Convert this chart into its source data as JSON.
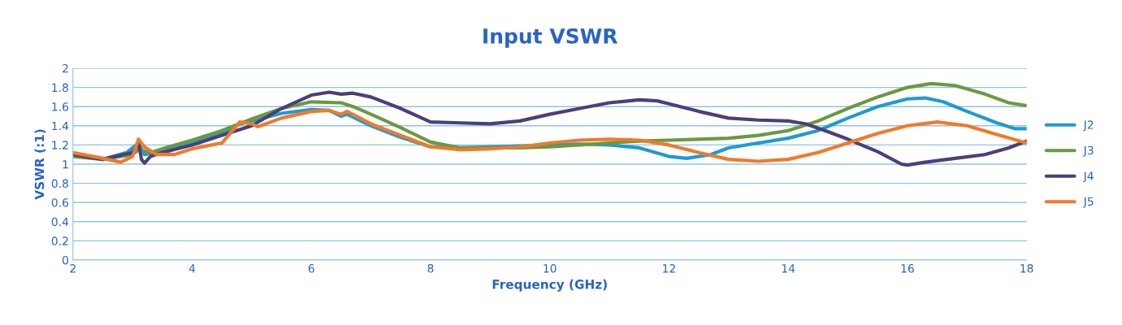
{
  "chart_data": {
    "type": "line",
    "title": "Input VSWR",
    "xlabel": "Frequency (GHz)",
    "ylabel": "VSWR (:1)",
    "xlim": [
      2,
      18
    ],
    "xticks": [
      2,
      4,
      6,
      8,
      10,
      12,
      14,
      16,
      18
    ],
    "ylim": [
      0,
      2
    ],
    "yticks": [
      0,
      0.2,
      0.4,
      0.6,
      0.8,
      1,
      1.2,
      1.4,
      1.6,
      1.8,
      2
    ],
    "grid": "y",
    "legend": "right",
    "line_style": "solid",
    "marker": "none",
    "series": [
      {
        "name": "J2",
        "color": "#1f9ad6",
        "x": [
          2,
          2.5,
          2.9,
          3.1,
          3.2,
          3.5,
          4,
          4.5,
          4.8,
          5,
          5.5,
          6,
          6.3,
          6.5,
          6.6,
          7,
          7.5,
          8,
          8.5,
          9,
          9.5,
          10,
          10.5,
          11,
          11.5,
          12,
          12.3,
          12.7,
          13,
          13.5,
          14,
          14.5,
          15,
          15.5,
          16,
          16.3,
          16.6,
          17,
          17.5,
          17.8,
          18
        ],
        "values": [
          1.1,
          1.05,
          1.12,
          1.22,
          1.1,
          1.13,
          1.22,
          1.32,
          1.42,
          1.45,
          1.53,
          1.57,
          1.56,
          1.5,
          1.52,
          1.4,
          1.28,
          1.18,
          1.17,
          1.18,
          1.19,
          1.2,
          1.21,
          1.2,
          1.17,
          1.08,
          1.06,
          1.1,
          1.17,
          1.22,
          1.27,
          1.35,
          1.48,
          1.6,
          1.68,
          1.69,
          1.65,
          1.55,
          1.43,
          1.37,
          1.37
        ]
      },
      {
        "name": "J3",
        "color": "#6a9a3e",
        "x": [
          2,
          2.5,
          3,
          3.1,
          3.3,
          3.5,
          4,
          4.5,
          5,
          5.5,
          6,
          6.5,
          6.7,
          7,
          7.5,
          8,
          8.5,
          9,
          9.5,
          10,
          10.5,
          11,
          11.5,
          12,
          12.5,
          13,
          13.5,
          14,
          14.5,
          15,
          15.5,
          16,
          16.4,
          16.8,
          17.3,
          17.7,
          18
        ],
        "values": [
          1.08,
          1.05,
          1.1,
          1.15,
          1.12,
          1.16,
          1.25,
          1.35,
          1.47,
          1.58,
          1.65,
          1.64,
          1.6,
          1.52,
          1.38,
          1.23,
          1.17,
          1.17,
          1.17,
          1.18,
          1.2,
          1.22,
          1.24,
          1.25,
          1.26,
          1.27,
          1.3,
          1.35,
          1.45,
          1.58,
          1.7,
          1.8,
          1.84,
          1.82,
          1.73,
          1.64,
          1.61
        ]
      },
      {
        "name": "J4",
        "color": "#4b3f7a",
        "x": [
          2,
          2.5,
          3,
          3.1,
          3.15,
          3.2,
          3.3,
          3.5,
          4,
          4.5,
          5,
          5.5,
          6,
          6.3,
          6.5,
          6.7,
          7,
          7.5,
          8,
          8.5,
          9,
          9.5,
          10,
          10.5,
          11,
          11.5,
          11.8,
          12,
          12.5,
          13,
          13.5,
          14,
          14.3,
          14.7,
          15,
          15.5,
          15.9,
          16,
          16.3,
          16.8,
          17.3,
          17.7,
          18
        ],
        "values": [
          1.1,
          1.05,
          1.12,
          1.22,
          1.05,
          1.01,
          1.08,
          1.12,
          1.2,
          1.3,
          1.4,
          1.58,
          1.72,
          1.75,
          1.73,
          1.74,
          1.7,
          1.58,
          1.44,
          1.43,
          1.42,
          1.45,
          1.52,
          1.58,
          1.64,
          1.67,
          1.66,
          1.63,
          1.55,
          1.48,
          1.46,
          1.45,
          1.42,
          1.33,
          1.26,
          1.13,
          1.0,
          0.99,
          1.02,
          1.06,
          1.1,
          1.17,
          1.24
        ]
      },
      {
        "name": "J5",
        "color": "#f07a2a",
        "x": [
          2,
          2.5,
          2.8,
          3,
          3.1,
          3.2,
          3.4,
          3.7,
          4,
          4.5,
          4.8,
          5,
          5.1,
          5.5,
          6,
          6.3,
          6.5,
          6.6,
          7,
          7.5,
          8,
          8.5,
          9,
          9.5,
          10,
          10.5,
          11,
          11.5,
          12,
          12.5,
          13,
          13.5,
          14,
          14.5,
          15,
          15.5,
          16,
          16.5,
          17,
          17.5,
          18
        ],
        "values": [
          1.12,
          1.06,
          1.02,
          1.08,
          1.26,
          1.18,
          1.1,
          1.1,
          1.16,
          1.22,
          1.44,
          1.42,
          1.39,
          1.48,
          1.55,
          1.56,
          1.52,
          1.55,
          1.42,
          1.3,
          1.18,
          1.15,
          1.16,
          1.18,
          1.22,
          1.25,
          1.26,
          1.25,
          1.2,
          1.12,
          1.05,
          1.03,
          1.05,
          1.12,
          1.22,
          1.32,
          1.4,
          1.44,
          1.4,
          1.31,
          1.22
        ]
      }
    ]
  }
}
